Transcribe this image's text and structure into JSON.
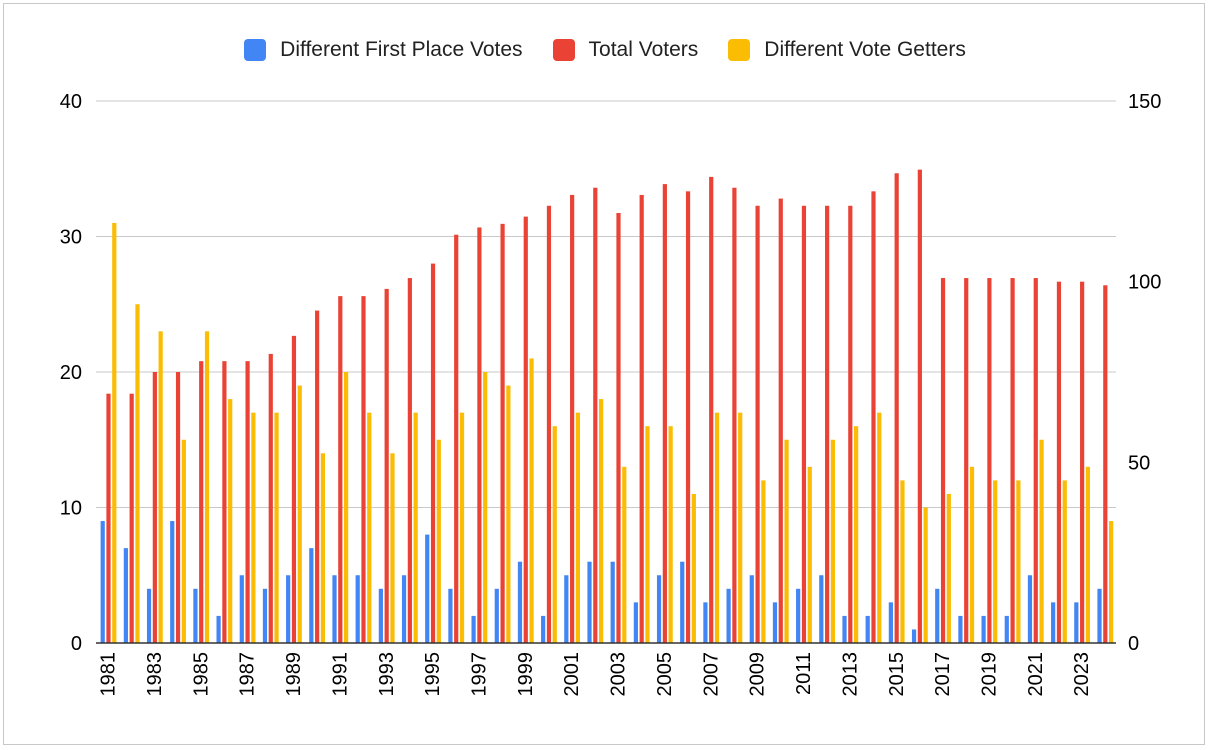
{
  "chart_data": {
    "type": "bar",
    "categories": [
      "1981",
      "1982",
      "1983",
      "1984",
      "1985",
      "1986",
      "1987",
      "1988",
      "1989",
      "1990",
      "1991",
      "1992",
      "1993",
      "1994",
      "1995",
      "1996",
      "1997",
      "1998",
      "1999",
      "2000",
      "2001",
      "2002",
      "2003",
      "2004",
      "2005",
      "2006",
      "2007",
      "2008",
      "2009",
      "2010",
      "2011",
      "2012",
      "2013",
      "2014",
      "2015",
      "2016",
      "2017",
      "2018",
      "2019",
      "2020",
      "2021",
      "2022",
      "2023",
      "2024"
    ],
    "x_tick_labels": [
      "1981",
      "1983",
      "1985",
      "1987",
      "1989",
      "1991",
      "1993",
      "1995",
      "1997",
      "1999",
      "2001",
      "2003",
      "2005",
      "2007",
      "2009",
      "2011",
      "2013",
      "2015",
      "2017",
      "2019",
      "2021",
      "2023"
    ],
    "series": [
      {
        "name": "Different First Place Votes",
        "color": "#4285F4",
        "axis": "left",
        "values": [
          9,
          7,
          4,
          9,
          4,
          2,
          5,
          4,
          5,
          7,
          5,
          5,
          4,
          5,
          8,
          4,
          2,
          4,
          6,
          2,
          5,
          6,
          6,
          3,
          5,
          6,
          3,
          4,
          5,
          3,
          4,
          5,
          2,
          2,
          3,
          1,
          4,
          2,
          2,
          2,
          5,
          3,
          3,
          4
        ]
      },
      {
        "name": "Total Voters",
        "color": "#EA4335",
        "axis": "right",
        "values": [
          69,
          69,
          75,
          75,
          78,
          78,
          78,
          80,
          85,
          92,
          96,
          96,
          98,
          101,
          105,
          113,
          115,
          116,
          118,
          121,
          124,
          126,
          119,
          124,
          127,
          125,
          129,
          126,
          121,
          123,
          121,
          121,
          121,
          125,
          130,
          131,
          101,
          101,
          101,
          101,
          101,
          100,
          100,
          99
        ]
      },
      {
        "name": "Different Vote Getters",
        "color": "#FBBC04",
        "axis": "left",
        "values": [
          31,
          25,
          23,
          15,
          23,
          18,
          17,
          17,
          19,
          14,
          20,
          17,
          14,
          17,
          15,
          17,
          20,
          19,
          21,
          16,
          17,
          18,
          13,
          16,
          16,
          11,
          17,
          17,
          12,
          15,
          13,
          15,
          16,
          17,
          12,
          10,
          11,
          13,
          12,
          12,
          15,
          12,
          13,
          9
        ]
      }
    ],
    "left_axis": {
      "ylim": [
        0,
        40
      ],
      "ticks": [
        "0",
        "10",
        "20",
        "30",
        "40"
      ]
    },
    "right_axis": {
      "ylim": [
        0,
        150
      ],
      "ticks": [
        "0",
        "50",
        "100",
        "150"
      ]
    },
    "grid": true,
    "legend_position": "top",
    "xlabel": "",
    "ylabel": ""
  }
}
